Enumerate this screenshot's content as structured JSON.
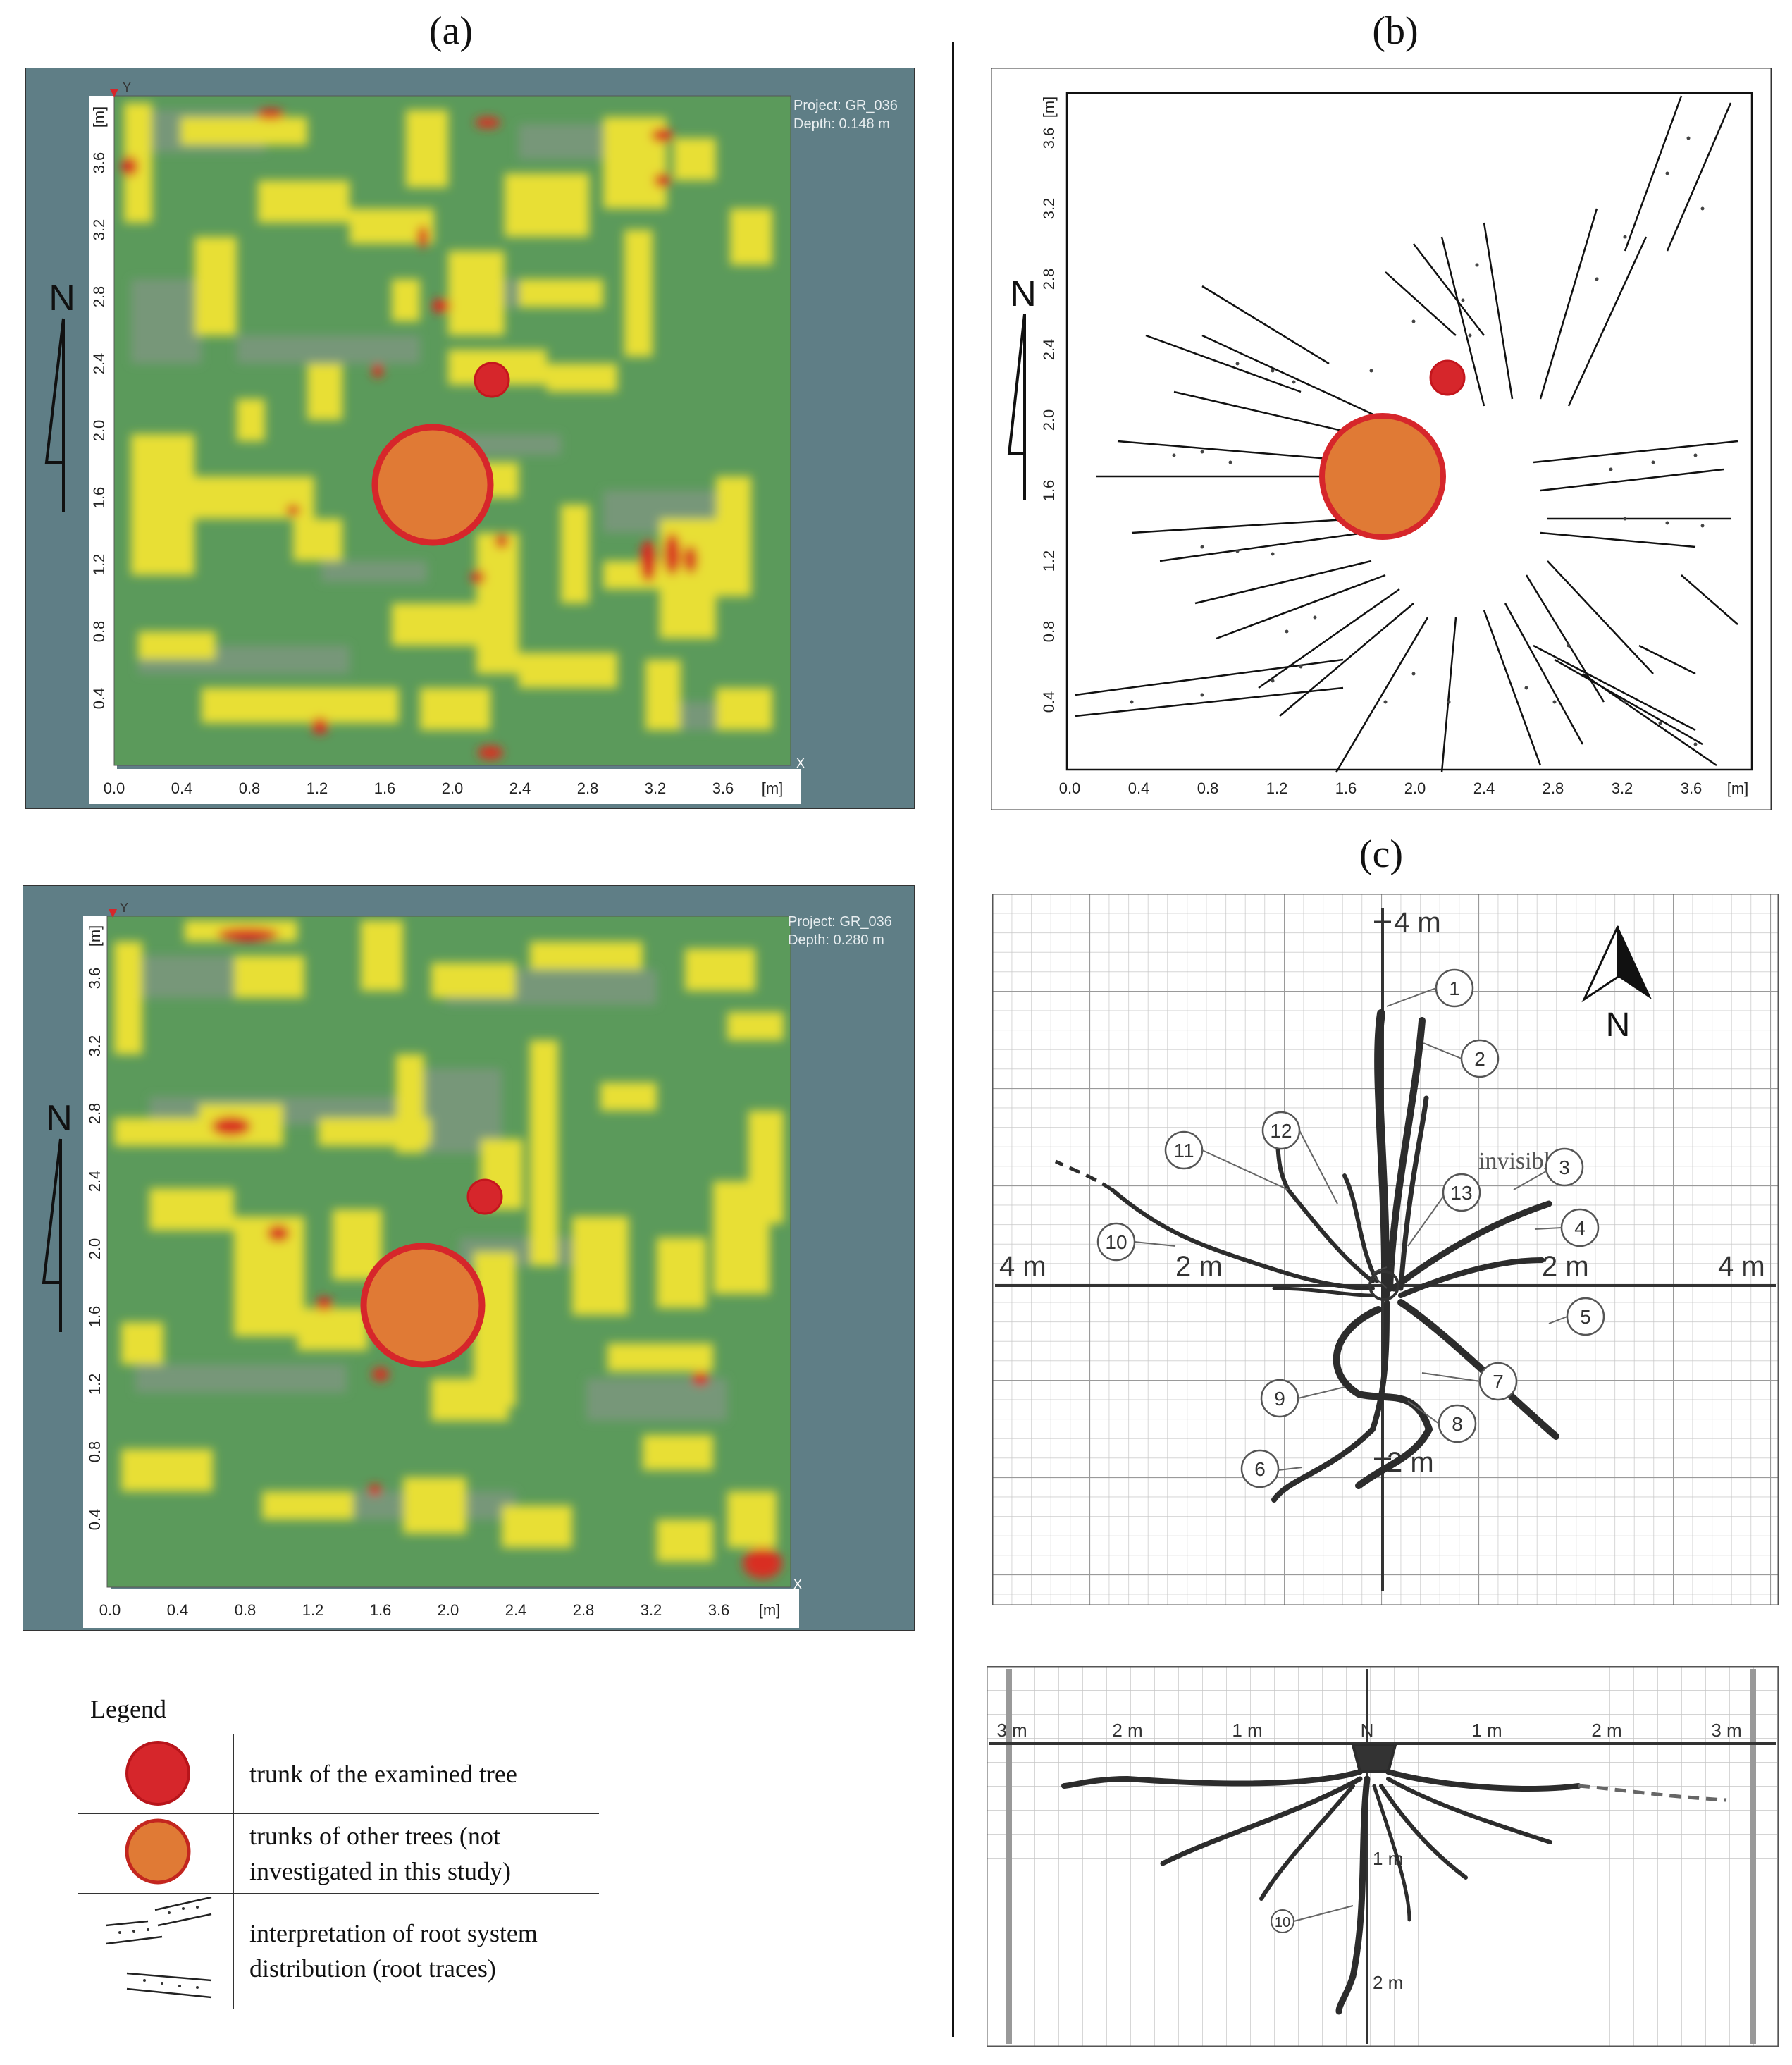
{
  "panels": {
    "a": {
      "label": "(a)",
      "top_map": {
        "project": "Project: GR_036",
        "depth": "Depth: 0.148 m"
      },
      "bottom_map": {
        "project": "Project: GR_036",
        "depth": "Depth: 0.280 m"
      },
      "axis_unit": "[m]",
      "x_ticks": [
        "0.0",
        "0.4",
        "0.8",
        "1.2",
        "1.6",
        "2.0",
        "2.4",
        "2.8",
        "3.2",
        "3.6"
      ],
      "y_ticks": [
        "0.4",
        "0.8",
        "1.2",
        "1.6",
        "2.0",
        "2.4",
        "2.8",
        "3.2",
        "3.6"
      ],
      "x_marker": "X",
      "y_marker": "Y",
      "north": "N",
      "colors": {
        "background": "#5f7e86",
        "field": "#5b9a5b",
        "anomaly_low": "#e6e03a",
        "anomaly_high": "#d92e23",
        "other_trunk": "#e07a35",
        "examined_trunk": "#d6262b"
      }
    },
    "b": {
      "label": "(b)",
      "axis_unit": "[m]",
      "x_ticks": [
        "0.0",
        "0.4",
        "0.8",
        "1.2",
        "1.6",
        "2.0",
        "2.4",
        "2.8",
        "3.2",
        "3.6"
      ],
      "y_ticks": [
        "0.4",
        "0.8",
        "1.2",
        "1.6",
        "2.0",
        "2.4",
        "2.8",
        "3.2",
        "3.6"
      ],
      "north": "N"
    },
    "c": {
      "label": "(c)",
      "plan": {
        "axis_labels": {
          "top": "4 m",
          "left": "4 m",
          "left_mid": "2 m",
          "right_mid": "2 m",
          "right": "4 m",
          "bottom_mid": "2 m"
        },
        "north": "N",
        "invisible_label": "invisible",
        "root_numbers": [
          "1",
          "2",
          "3",
          "4",
          "5",
          "6",
          "7",
          "8",
          "9",
          "10",
          "11",
          "12",
          "13"
        ]
      },
      "profile": {
        "top_labels": [
          "3 m",
          "2 m",
          "1 m",
          "N",
          "1 m",
          "2 m",
          "3 m"
        ],
        "depth_labels": [
          "1 m",
          "2 m"
        ],
        "root_number": "10"
      }
    }
  },
  "legend": {
    "title": "Legend",
    "items": [
      {
        "text": "trunk of the examined tree",
        "color": "#d6262b"
      },
      {
        "text": "trunks of other trees (not investigated in this study)",
        "color": "#e07a35"
      },
      {
        "text": "interpretation of root system distribution (root traces)"
      }
    ]
  }
}
